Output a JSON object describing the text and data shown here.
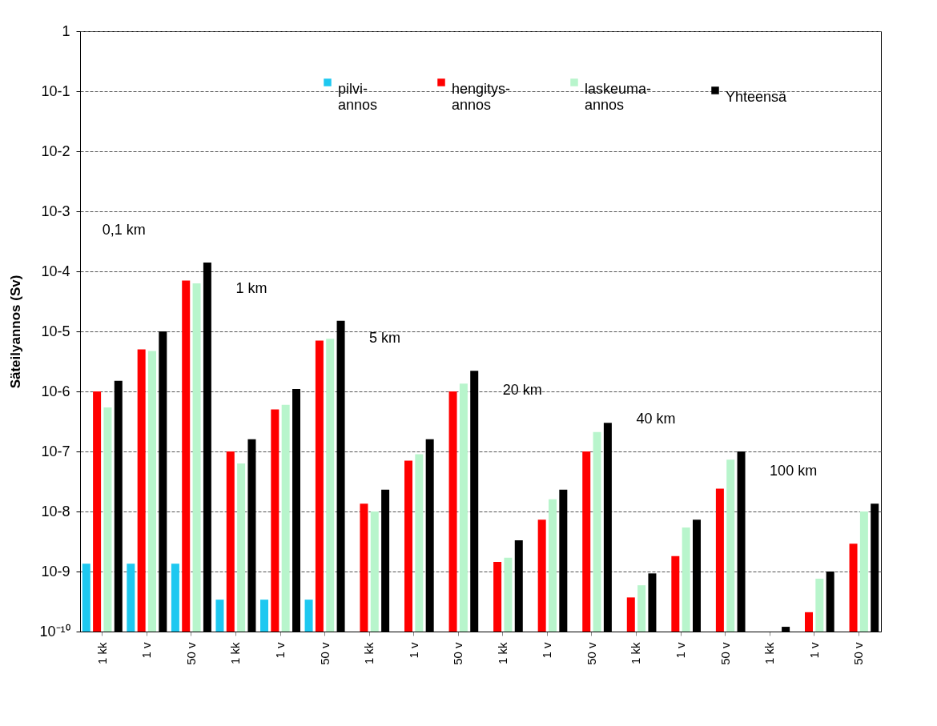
{
  "chart_data": {
    "type": "bar",
    "ylabel": "Säteilyannos (Sv)",
    "log": true,
    "grid": "y",
    "legend": "top right",
    "categories": [
      "1 kk",
      "1 v",
      "50 v",
      "1 kk",
      "1 v",
      "50 v",
      "1 kk",
      "1 v",
      "50 v",
      "1 kk",
      "1 v",
      "50 v",
      "1 kk",
      "1 v",
      "50 v",
      "1 kk",
      "1 v",
      "50 v"
    ],
    "series": [
      {
        "name": "pilvi-annos",
        "color": "#1ec8f0",
        "values": [
          1.35e-09,
          1.35e-09,
          1.35e-09,
          3.4e-10,
          3.4e-10,
          3.4e-10,
          null,
          null,
          null,
          null,
          null,
          null,
          null,
          null,
          null,
          null,
          null,
          null
        ]
      },
      {
        "name": "hengitys-annos",
        "color": "#ff0000",
        "values": [
          1e-06,
          5e-06,
          7e-05,
          1e-07,
          5e-07,
          7e-06,
          1.35e-08,
          7e-08,
          1e-06,
          1.45e-09,
          7.3e-09,
          1e-07,
          3.7e-10,
          1.8e-09,
          2.4e-08,
          null,
          2.1e-10,
          2.9e-09
        ]
      },
      {
        "name": "laskeuma-annos",
        "color": "#b8f5cc",
        "values": [
          5.4e-07,
          4.7e-06,
          6.3e-05,
          6.3e-08,
          6e-07,
          7.5e-06,
          1e-08,
          9e-08,
          1.35e-06,
          1.7e-09,
          1.6e-08,
          2.1e-07,
          5.9e-10,
          5.4e-09,
          7.3e-08,
          null,
          7.6e-10,
          1e-08
        ]
      },
      {
        "name": "Yhteensä",
        "color": "#000000",
        "values": [
          1.5e-06,
          1e-05,
          0.00014,
          1.6e-07,
          1.1e-06,
          1.5e-05,
          2.3e-08,
          1.6e-07,
          2.2e-06,
          3.3e-09,
          2.3e-08,
          3e-07,
          9.3e-10,
          7.3e-09,
          1e-07,
          1.2e-10,
          1e-09,
          1.35e-08
        ]
      }
    ],
    "ylim": [
      1e-10,
      1
    ],
    "yticks": [
      {
        "value": 1e-10,
        "label": "10⁻¹⁰"
      },
      {
        "value": 1e-09,
        "label": "10-9"
      },
      {
        "value": 1e-08,
        "label": "10-8"
      },
      {
        "value": 1e-07,
        "label": "10-7"
      },
      {
        "value": 1e-06,
        "label": "10-6"
      },
      {
        "value": 1e-05,
        "label": "10-5"
      },
      {
        "value": 0.0001,
        "label": "10-4"
      },
      {
        "value": 0.001,
        "label": "10-3"
      },
      {
        "value": 0.01,
        "label": "10-2"
      },
      {
        "value": 0.1,
        "label": "10-1"
      },
      1
    ],
    "annotations": [
      "0,1 km",
      "1 km",
      "5 km",
      "20 km",
      "40 km",
      "100 km"
    ]
  }
}
